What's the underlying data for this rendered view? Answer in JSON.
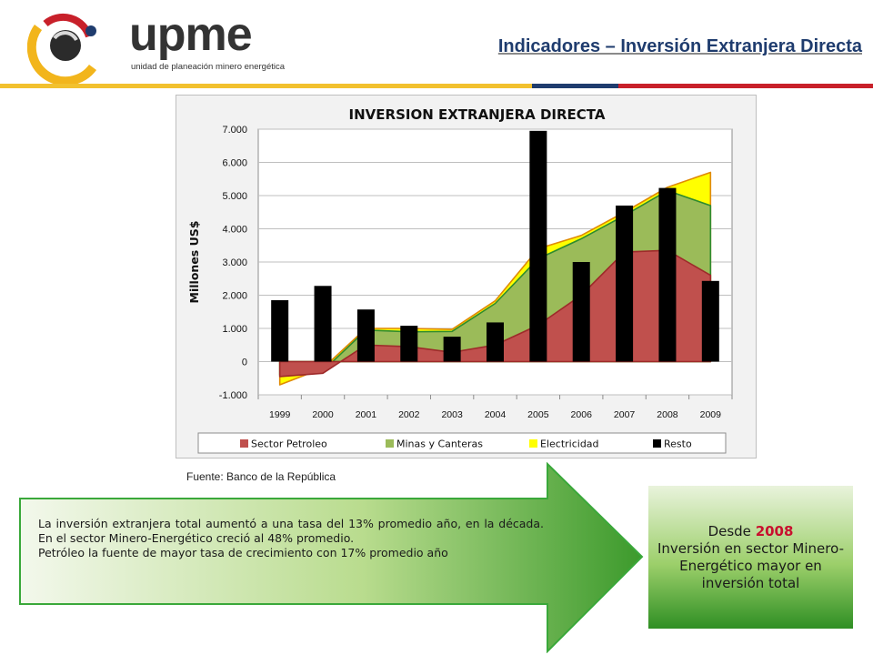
{
  "header": {
    "logo_text": "upme",
    "logo_subtitle": "unidad de planeación minero energética",
    "title": "Indicadores – Inversión Extranjera Directa"
  },
  "source": "Fuente: Banco de la República",
  "summary": {
    "line1": "La inversión extranjera total aumentó a una tasa del 13% promedio año, en la década.  En el sector Minero-Energético creció al 48% promedio.",
    "line2": "Petróleo la fuente de mayor tasa de crecimiento con 17%  promedio año"
  },
  "callout": {
    "prefix": "Desde ",
    "year": "2008",
    "text": "Inversión en sector Minero-Energético mayor en  inversión total"
  },
  "chart_data": {
    "type": "area",
    "title": "INVERSION EXTRANJERA DIRECTA",
    "ylabel": "Millones US$",
    "xlabel": "",
    "categories": [
      "1999",
      "2000",
      "2001",
      "2002",
      "2003",
      "2004",
      "2005",
      "2006",
      "2007",
      "2008",
      "2009"
    ],
    "ylim": [
      -1000,
      7000
    ],
    "yticks": [
      -1000,
      0,
      1000,
      2000,
      3000,
      4000,
      5000,
      6000,
      7000
    ],
    "ytick_labels": [
      "-1.000",
      "0",
      "1.000",
      "2.000",
      "3.000",
      "4.000",
      "5.000",
      "6.000",
      "7.000"
    ],
    "grid": true,
    "legend": "bottom",
    "series": [
      {
        "name": "Sector Petroleo",
        "kind": "stacked-area",
        "color": "#c0504d",
        "values": [
          -450,
          -350,
          500,
          450,
          280,
          500,
          1100,
          2000,
          3300,
          3350,
          2600
        ]
      },
      {
        "name": "Minas y Canteras",
        "kind": "stacked-area",
        "color": "#9bbb59",
        "values": [
          50,
          70,
          450,
          450,
          630,
          1250,
          2000,
          1700,
          1100,
          1800,
          2100
        ]
      },
      {
        "name": "Electricidad",
        "kind": "stacked-area",
        "color": "#ffff00",
        "values": [
          -300,
          80,
          50,
          100,
          60,
          80,
          300,
          100,
          100,
          100,
          1000
        ]
      },
      {
        "name": "Resto",
        "kind": "bar",
        "color": "#000000",
        "values": [
          1850,
          2280,
          1570,
          1080,
          750,
          1180,
          6950,
          3000,
          4700,
          5230,
          2430
        ]
      }
    ]
  }
}
